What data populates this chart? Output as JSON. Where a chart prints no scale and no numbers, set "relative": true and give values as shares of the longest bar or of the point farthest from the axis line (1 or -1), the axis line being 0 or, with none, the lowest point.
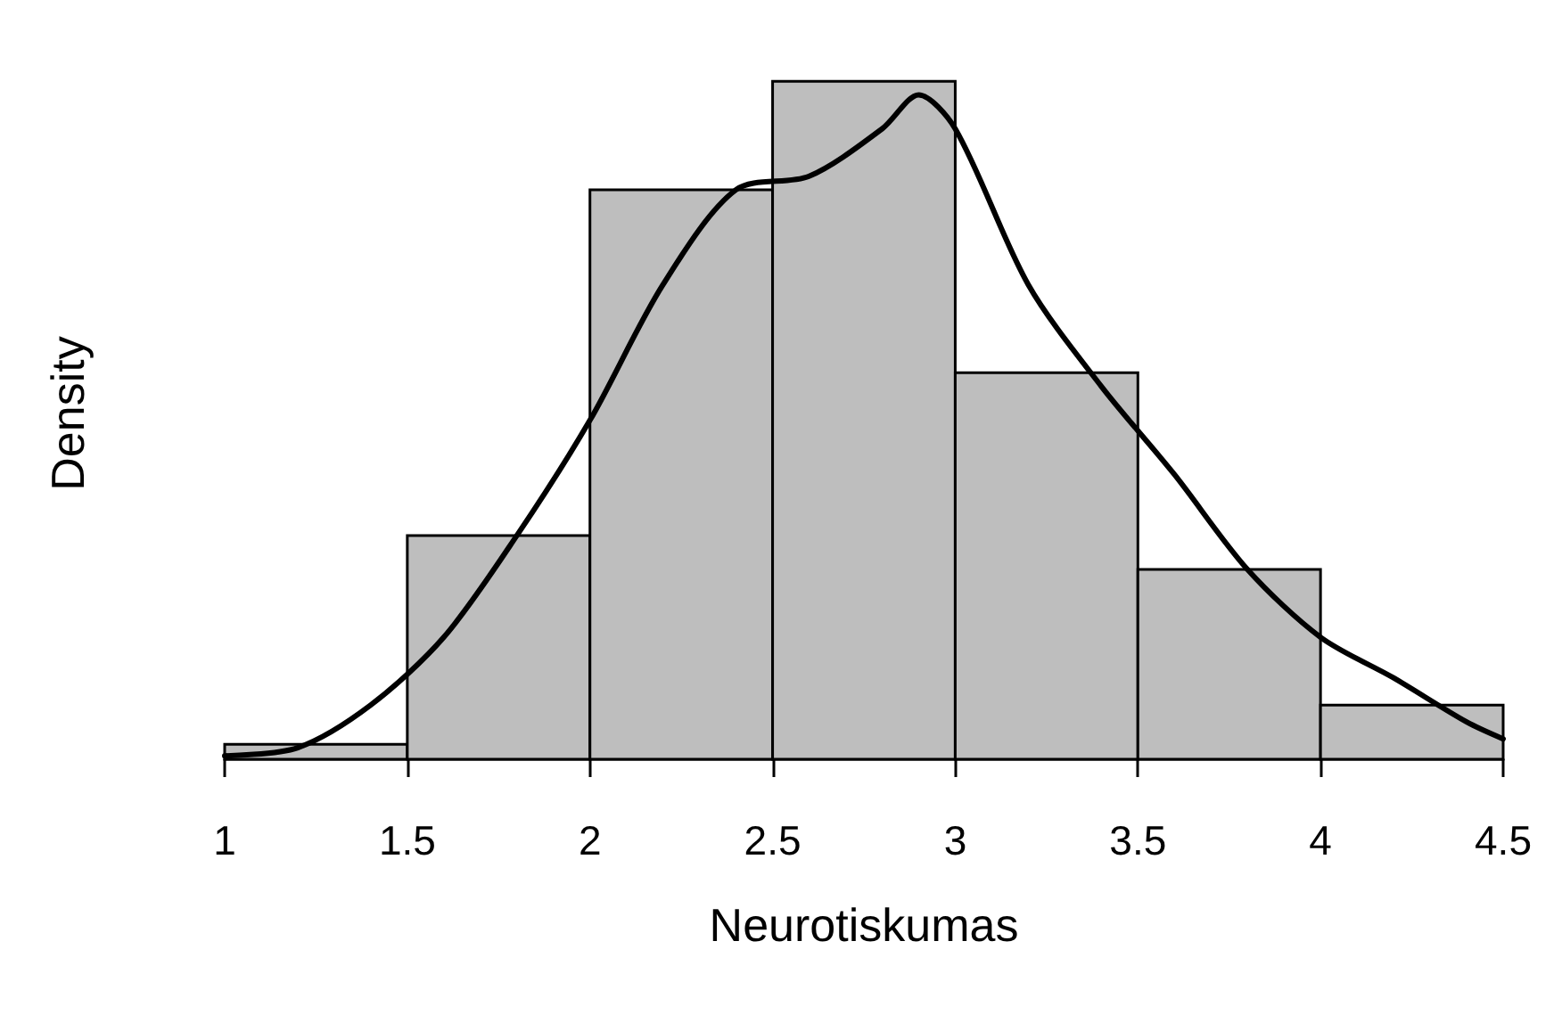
{
  "chart_data": {
    "type": "histogram",
    "relative": true,
    "xlabel": "Neurotiskumas",
    "ylabel": "Density",
    "xlim": [
      1,
      4.5
    ],
    "xticks": [
      1,
      1.5,
      2,
      2.5,
      3,
      3.5,
      4,
      4.5
    ],
    "bins": [
      1,
      1.5,
      2,
      2.5,
      3,
      3.5,
      4,
      4.5
    ],
    "grid": false,
    "series": [
      {
        "type": "histogram",
        "color": "#bebebe",
        "values": [
          0.022,
          0.33,
          0.84,
          1,
          0.57,
          0.28,
          0.08
        ]
      },
      {
        "type": "line",
        "color": "#000000",
        "x": [
          1,
          1.2,
          1.4,
          1.6,
          1.8,
          2,
          2.2,
          2.4,
          2.6,
          2.8,
          2.9,
          3,
          3.2,
          3.4,
          3.6,
          3.8,
          4,
          4.2,
          4.4,
          4.5
        ],
        "values": [
          0.005,
          0.017,
          0.08,
          0.18,
          0.33,
          0.5,
          0.7,
          0.84,
          0.86,
          0.93,
          0.98,
          0.93,
          0.7,
          0.55,
          0.42,
          0.28,
          0.18,
          0.12,
          0.055,
          0.03
        ]
      }
    ]
  }
}
